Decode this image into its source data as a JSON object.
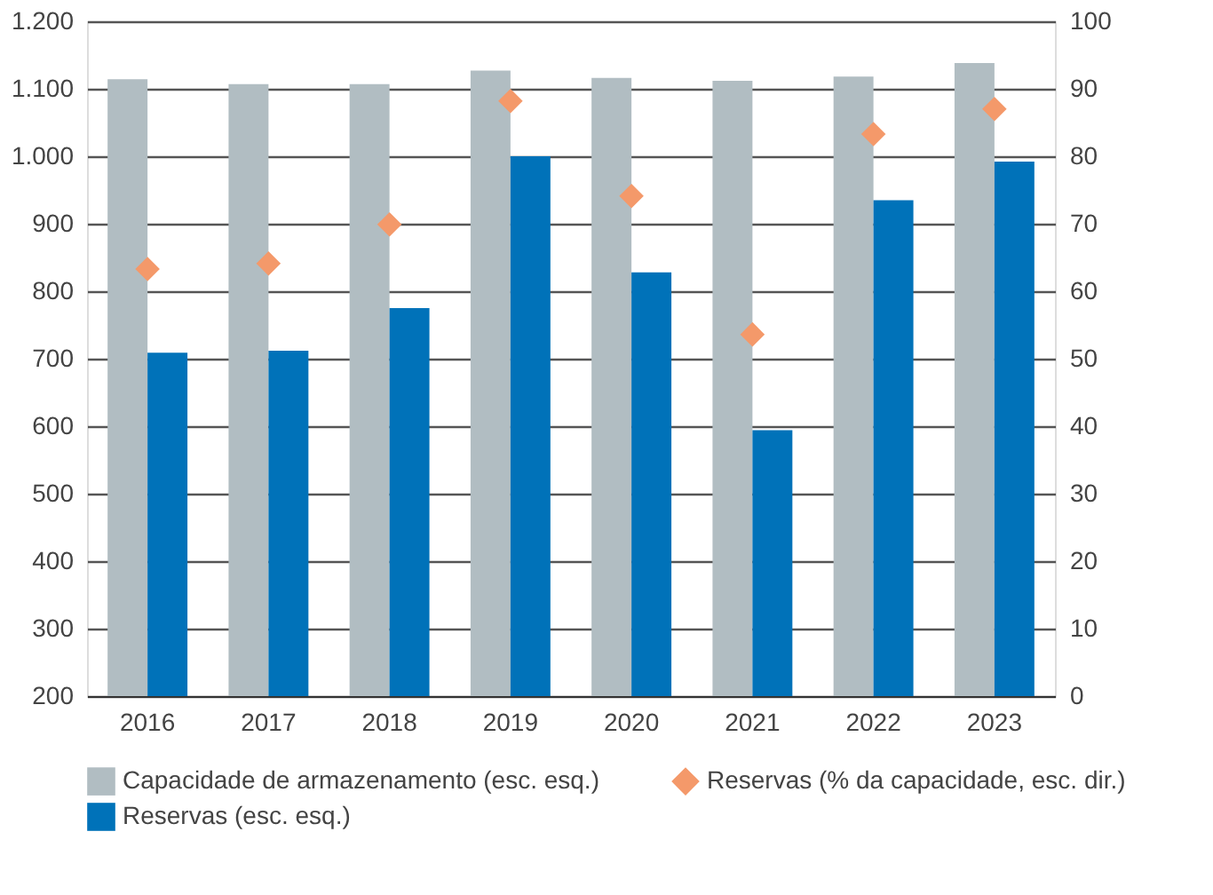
{
  "chart_data": {
    "type": "bar",
    "categories": [
      "2016",
      "2017",
      "2018",
      "2019",
      "2020",
      "2021",
      "2022",
      "2023"
    ],
    "series": [
      {
        "name": "Capacidade de armazenamento (esc. esq.)",
        "color": "#b1bdc2",
        "values": [
          1114,
          1107,
          1107,
          1127,
          1116,
          1112,
          1118,
          1138
        ]
      },
      {
        "name": "Reservas (esc. esq.)",
        "color": "#0072b9",
        "values": [
          709,
          712,
          775,
          1000,
          828,
          594,
          935,
          992
        ]
      },
      {
        "name": "Reservas (% da capacidade, esc. dir.)",
        "color": "#f4996a",
        "type": "scatter",
        "axis": "y2",
        "marker": "diamond",
        "values": [
          63.3,
          64.1,
          69.9,
          88.2,
          74.1,
          53.6,
          83.3,
          87.0
        ]
      }
    ],
    "ylim": [
      200,
      1200
    ],
    "yticks": [
      200,
      300,
      400,
      500,
      600,
      700,
      800,
      900,
      {
        "value": 1000,
        "label": "1.000"
      },
      {
        "value": 1100,
        "label": "1.100"
      },
      {
        "value": 1200,
        "label": "1.200"
      }
    ],
    "y2lim": [
      0,
      100
    ],
    "y2ticks": [
      0,
      10,
      20,
      30,
      40,
      50,
      60,
      70,
      80,
      90,
      100
    ],
    "grid": "y",
    "legend": "bottom"
  }
}
